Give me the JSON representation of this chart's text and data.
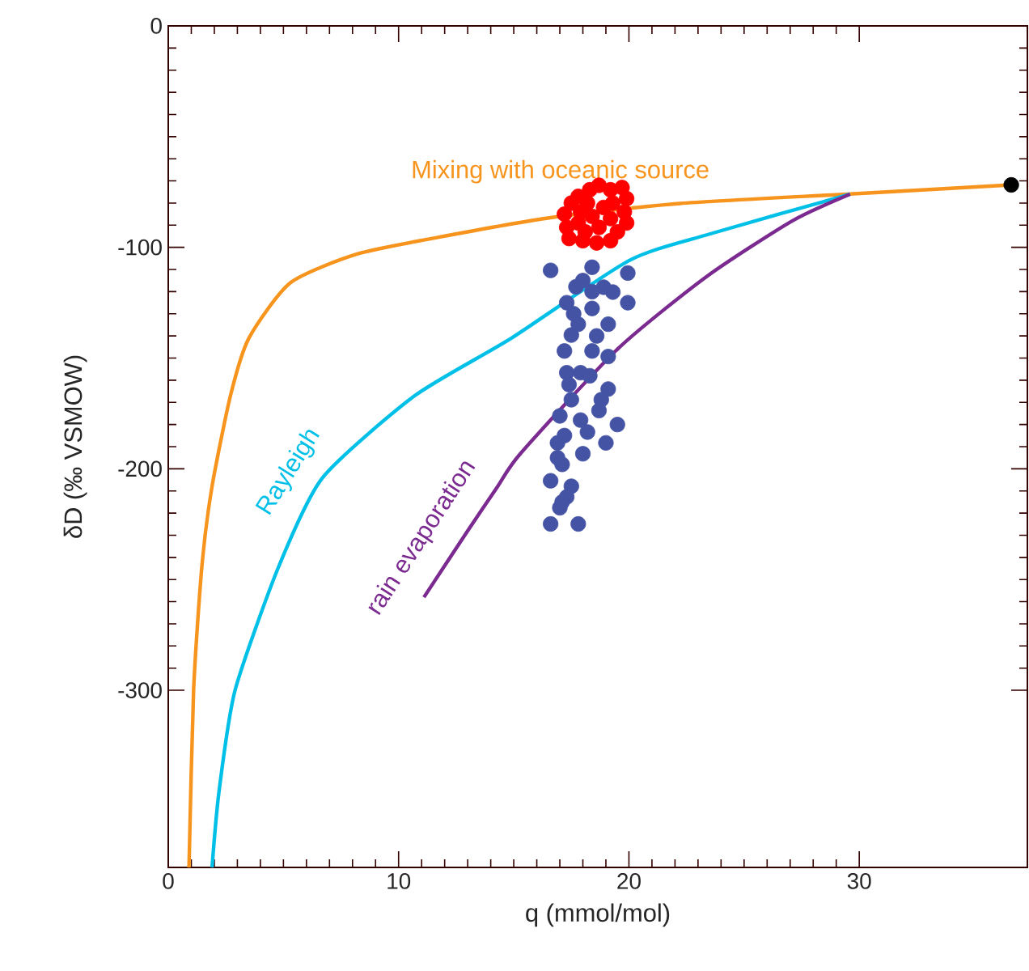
{
  "chart_data": {
    "type": "line",
    "xlabel": "q (mmol/mol)",
    "ylabel": "δD (‰ VSMOW)",
    "xlim": [
      0,
      37.3
    ],
    "ylim": [
      -380,
      0
    ],
    "xticks": [
      0,
      10,
      20,
      30
    ],
    "yticks": [
      0,
      -100,
      -200,
      -300
    ],
    "series": [
      {
        "name": "Mixing with oceanic source",
        "color": "#f7941d",
        "x": [
          0.9,
          1.1,
          1.46,
          1.9,
          2.7,
          3.5,
          5.3,
          8.2,
          11.7,
          16.6,
          22.2,
          29.6,
          36.6
        ],
        "values": [
          -380,
          -300,
          -244,
          -208,
          -167,
          -141,
          -116,
          -103,
          -95.5,
          -86.6,
          -80.2,
          -75.9,
          -71.8
        ]
      },
      {
        "name": "Rayleigh",
        "color": "#00c0e8",
        "x": [
          1.9,
          2.2,
          2.9,
          4.8,
          6.7,
          10.7,
          14.9,
          20.0,
          23.5,
          29.6
        ],
        "values": [
          -380,
          -346,
          -300,
          -244,
          -204,
          -167,
          -141,
          -106,
          -94,
          -76
        ]
      },
      {
        "name": "rain evaporation",
        "color": "#7b2a90",
        "x": [
          11.1,
          13.0,
          14.3,
          15.3,
          19.5,
          23.4,
          27.1,
          29.6
        ],
        "values": [
          -258,
          -228,
          -208,
          -193,
          -146,
          -113,
          -88,
          -76
        ]
      },
      {
        "type": "scatter",
        "marker": "circle",
        "color": "#4553a5",
        "x": [
          16.6,
          19.95,
          18.4,
          17.3,
          19.95,
          18.4,
          19.1,
          17.5,
          19.1,
          17.3,
          18.4,
          18.8,
          17.5,
          18.7,
          17.0,
          19.0,
          18.0,
          17.1,
          16.6,
          17.5,
          17.0,
          16.6,
          17.8,
          17.3,
          16.9,
          18.2,
          19.1,
          17.9,
          19.3,
          17.7,
          17.8,
          17.2,
          18.0,
          18.9,
          17.6,
          18.6,
          17.4,
          18.3,
          17.9,
          17.2,
          16.9,
          18.4,
          19.5,
          17.1
        ],
        "values": [
          -110.4,
          -111.6,
          -109,
          -125,
          -125,
          -127.6,
          -134.7,
          -139.6,
          -149.3,
          -156.6,
          -146.8,
          -168.8,
          -168.8,
          -173.7,
          -176.1,
          -188.3,
          -193.2,
          -198,
          -205.4,
          -207.9,
          -217.6,
          -224.9,
          -224.9,
          -212.7,
          -188.3,
          -183.4,
          -164,
          -156.6,
          -120.2,
          -117.8,
          -134.7,
          -146.8,
          -115,
          -118,
          -130,
          -140,
          -162,
          -158,
          -178,
          -185,
          -195,
          -120,
          -180,
          -215
        ]
      },
      {
        "type": "scatter",
        "marker": "circle",
        "color": "#ff0000",
        "x": [
          17.2,
          17.5,
          17.8,
          18.3,
          18.7,
          19.2,
          19.7,
          19.9,
          19.8,
          19.9,
          19.5,
          19.2,
          18.6,
          18.0,
          17.4,
          17.3,
          17.8,
          18.4,
          18.9,
          18.2,
          19.3,
          18.7,
          18.1,
          19.2,
          17.9
        ],
        "values": [
          -85,
          -80,
          -77,
          -74,
          -72,
          -74,
          -73,
          -78,
          -84,
          -89,
          -93,
          -97,
          -98,
          -97,
          -96,
          -91,
          -89,
          -86,
          -82,
          -80,
          -80,
          -91,
          -93,
          -87,
          -84
        ]
      },
      {
        "type": "scatter",
        "marker": "circle",
        "color": "#000000",
        "x": [
          36.6
        ],
        "values": [
          -71.8
        ]
      }
    ]
  }
}
